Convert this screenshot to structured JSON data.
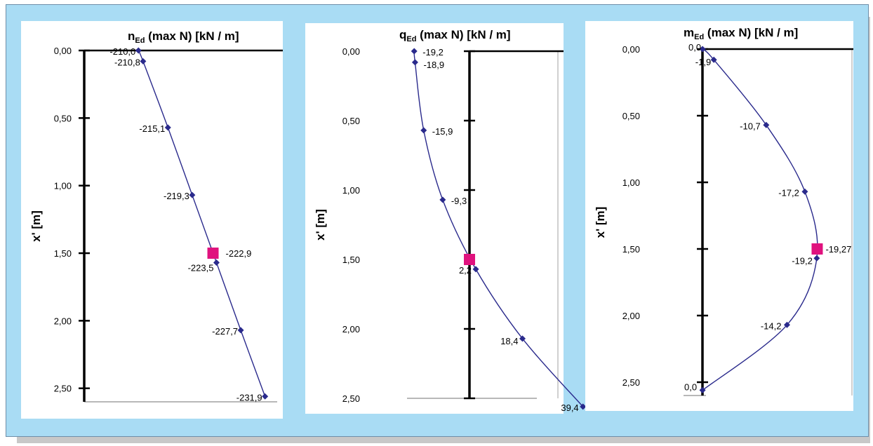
{
  "chart_data": [
    {
      "type": "line",
      "title": {
        "prefix": "n",
        "subscript": "Ed",
        "suffix": " (max N) [kN / m]"
      },
      "ylabel": "x' [m]",
      "ylim": [
        0,
        2.6
      ],
      "y_ticks": [
        "0,00",
        "0,50",
        "1,00",
        "1,50",
        "2,00",
        "2,50"
      ],
      "xlim": [
        -209.6,
        -233.4
      ],
      "series": [
        {
          "points": [
            {
              "x": -210.0,
              "y": 0.0,
              "label": "-210,0"
            },
            {
              "x": -210.8,
              "y": 0.08,
              "label": "-210,8"
            },
            {
              "x": -215.1,
              "y": 0.57,
              "label": "-215,1"
            },
            {
              "x": -219.3,
              "y": 1.07,
              "label": "-219,3"
            },
            {
              "x": -223.5,
              "y": 1.57,
              "label": "-223,5"
            },
            {
              "x": -227.7,
              "y": 2.07,
              "label": "-227,7"
            },
            {
              "x": -231.9,
              "y": 2.56,
              "label": "-231,9"
            }
          ]
        }
      ],
      "max_marker": {
        "x": -222.9,
        "y": 1.5,
        "label": "-222,9"
      },
      "colors": {
        "line": "#2a2a8c",
        "marker": "#e0127e"
      }
    },
    {
      "type": "line",
      "title": {
        "prefix": "q",
        "subscript": "Ed",
        "suffix": " (max N) [kN / m]"
      },
      "ylabel": "x' [m]",
      "ylim": [
        0,
        2.5
      ],
      "y_ticks": [
        "0,00",
        "0,50",
        "1,00",
        "1,50",
        "2,00",
        "2,50"
      ],
      "xlim": [
        -29,
        46
      ],
      "series": [
        {
          "points": [
            {
              "x": -19.2,
              "y": 0.0,
              "label": "-19,2"
            },
            {
              "x": -18.9,
              "y": 0.08,
              "label": "-18,9"
            },
            {
              "x": -15.9,
              "y": 0.57,
              "label": "-15,9"
            },
            {
              "x": -9.3,
              "y": 1.07,
              "label": "-9,3"
            },
            {
              "x": 2.2,
              "y": 1.57,
              "label": "2,2"
            },
            {
              "x": 18.4,
              "y": 2.07,
              "label": "18,4"
            },
            {
              "x": 39.4,
              "y": 2.56,
              "label": "39,4"
            }
          ]
        }
      ],
      "max_marker": {
        "x": 0.0,
        "y": 1.5
      },
      "colors": {
        "line": "#2a2a8c",
        "marker": "#e0127e"
      }
    },
    {
      "type": "line",
      "title": {
        "prefix": "m",
        "subscript": "Ed",
        "suffix": " (max N) [kN / m]"
      },
      "ylabel": "x' [m]",
      "ylim": [
        0,
        2.6
      ],
      "y_ticks": [
        "0,00",
        "0,50",
        "1,00",
        "1,50",
        "2,00",
        "2,50"
      ],
      "xlim": [
        0.6,
        -22.4
      ],
      "series": [
        {
          "points": [
            {
              "x": 0.0,
              "y": 0.0,
              "label": "0,0"
            },
            {
              "x": -1.9,
              "y": 0.08,
              "label": "-1,9"
            },
            {
              "x": -10.7,
              "y": 0.57,
              "label": "-10,7"
            },
            {
              "x": -17.2,
              "y": 1.07,
              "label": "-17,2"
            },
            {
              "x": -19.2,
              "y": 1.57,
              "label": "-19,2"
            },
            {
              "x": -14.2,
              "y": 2.07,
              "label": "-14,2"
            },
            {
              "x": 0.0,
              "y": 2.56,
              "label": "0,0"
            }
          ]
        }
      ],
      "max_marker": {
        "x": -19.27,
        "y": 1.5,
        "label": "-19,27"
      },
      "colors": {
        "line": "#2a2a8c",
        "marker": "#e0127e"
      }
    }
  ]
}
